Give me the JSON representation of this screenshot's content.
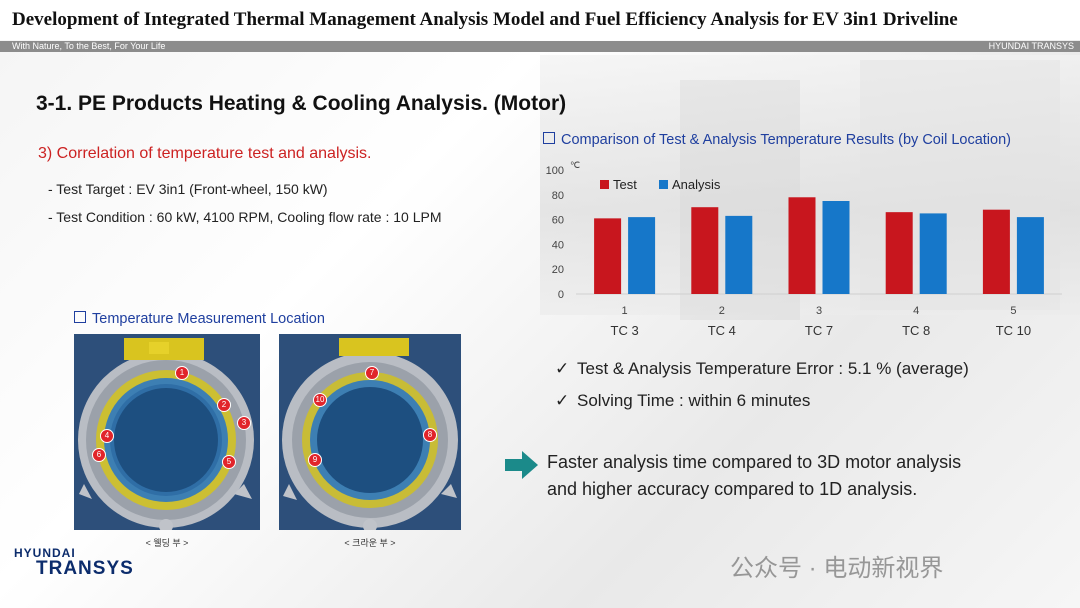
{
  "header": {
    "title": "Development of Integrated Thermal Management Analysis Model and Fuel Efficiency Analysis for EV 3in1 Driveline",
    "subbar_left": "With Nature, To the Best, For Your Life",
    "subbar_right": "HYUNDAI TRANSYS"
  },
  "section": {
    "title": "3-1. PE Products Heating & Cooling Analysis. (Motor)",
    "heading": "3) Correlation of temperature test and analysis.",
    "bullets": [
      "- Test Target : EV 3in1 (Front-wheel, 150 kW)",
      "- Test Condition : 60 kW, 4100 RPM, Cooling flow rate : 10 LPM"
    ]
  },
  "chart_section": {
    "heading": "Comparison of Test & Analysis Temperature Results (by Coil Location)"
  },
  "location_section": {
    "heading": "Temperature Measurement Location",
    "left_caption": "< 웰딩 부 >",
    "right_caption": "< 크라운 부 >",
    "left_labels": [
      "1",
      "2",
      "3",
      "4",
      "5",
      "6"
    ],
    "right_labels": [
      "7",
      "8",
      "9",
      "10"
    ]
  },
  "results": {
    "check1": "Test & Analysis Temperature Error : 5.1 % (average)",
    "check2": "Solving Time : within 6 minutes"
  },
  "conclusion": {
    "line1": "Faster analysis time compared to 3D motor analysis",
    "line2": "and higher accuracy compared to 1D analysis."
  },
  "logo": {
    "line1": "HYUNDAI",
    "line2": "TRANSYS"
  },
  "watermark": "公众号 · 电动新视界",
  "colors": {
    "test": "#c8161e",
    "analysis": "#1677c9",
    "arrow": "#1b8a8a",
    "heading_blue": "#1f3f9f",
    "heading_red": "#cc2222"
  },
  "chart_data": {
    "type": "bar",
    "unit": "℃",
    "categories": [
      "1",
      "2",
      "3",
      "4",
      "5"
    ],
    "category_labels": [
      "TC 3",
      "TC 4",
      "TC 7",
      "TC 8",
      "TC 10"
    ],
    "series": [
      {
        "name": "Test",
        "values": [
          61,
          70,
          78,
          66,
          68
        ]
      },
      {
        "name": "Analysis",
        "values": [
          62,
          63,
          75,
          65,
          62
        ]
      }
    ],
    "ylim": [
      0,
      100
    ],
    "yticks": [
      0,
      20,
      40,
      60,
      80,
      100
    ],
    "grid": false,
    "legend": "top-left"
  }
}
